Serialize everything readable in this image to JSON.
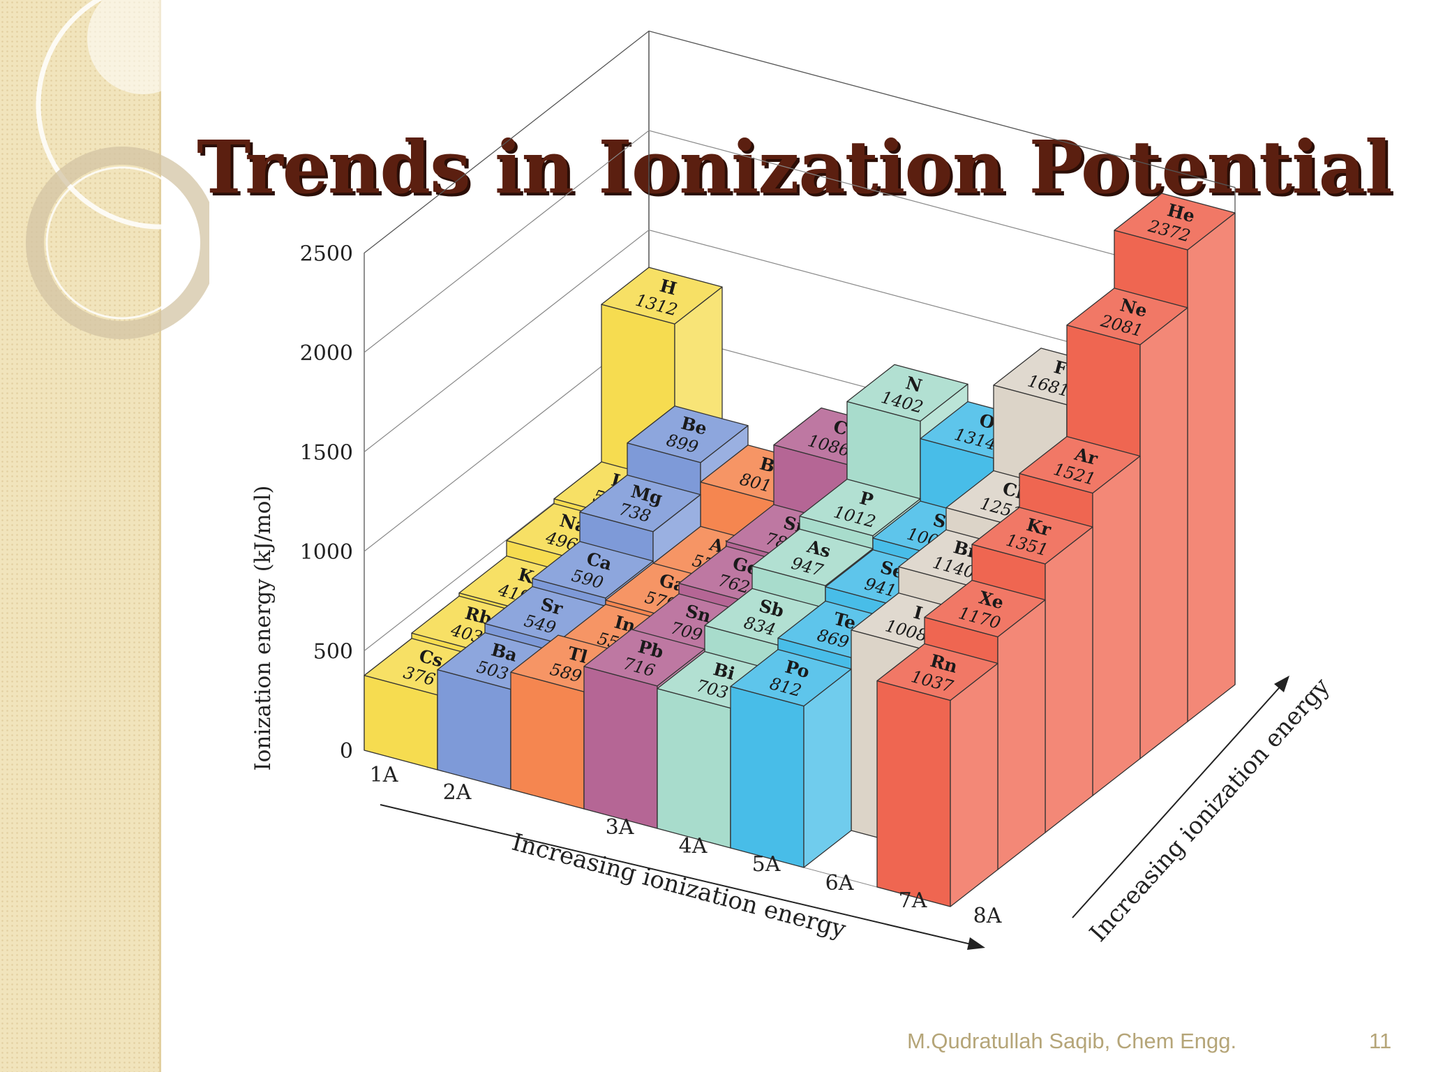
{
  "slide": {
    "title": "Trends in Ionization Potential",
    "author": "M.Qudratullah Saqib, Chem Engg.",
    "page_number": "11"
  },
  "chart_data": {
    "type": "bar",
    "style": "3d-bar-grid",
    "ylabel": "Ionization energy (kJ/mol)",
    "xlabel": "Increasing ionization energy",
    "depth_label": "Increasing ionization energy",
    "ylim": [
      0,
      2500
    ],
    "y_ticks": [
      "0",
      "500",
      "1000",
      "1500",
      "2000",
      "2500"
    ],
    "groups": [
      "1A",
      "2A",
      "3A",
      "4A",
      "5A",
      "6A",
      "7A",
      "8A"
    ],
    "group_colors": {
      "1A": "#f6dc50",
      "2A": "#7e9ad8",
      "3A": "#f58650",
      "4A": "#b56695",
      "5A": "#a8dccc",
      "6A": "#48bde8",
      "7A": "#dcd4c8",
      "8A": "#ef6651"
    },
    "elements": [
      {
        "symbol": "H",
        "value": 1312,
        "group": "1A",
        "period": 1
      },
      {
        "symbol": "He",
        "value": 2372,
        "group": "8A",
        "period": 1
      },
      {
        "symbol": "Li",
        "value": 520,
        "group": "1A",
        "period": 2
      },
      {
        "symbol": "Be",
        "value": 899,
        "group": "2A",
        "period": 2
      },
      {
        "symbol": "B",
        "value": 801,
        "group": "3A",
        "period": 2
      },
      {
        "symbol": "C",
        "value": 1086,
        "group": "4A",
        "period": 2
      },
      {
        "symbol": "N",
        "value": 1402,
        "group": "5A",
        "period": 2
      },
      {
        "symbol": "O",
        "value": 1314,
        "group": "6A",
        "period": 2
      },
      {
        "symbol": "F",
        "value": 1681,
        "group": "7A",
        "period": 2
      },
      {
        "symbol": "Ne",
        "value": 2081,
        "group": "8A",
        "period": 2
      },
      {
        "symbol": "Na",
        "value": 496,
        "group": "1A",
        "period": 3
      },
      {
        "symbol": "Mg",
        "value": 738,
        "group": "2A",
        "period": 3
      },
      {
        "symbol": "Al",
        "value": 578,
        "group": "3A",
        "period": 3
      },
      {
        "symbol": "Si",
        "value": 786,
        "group": "4A",
        "period": 3
      },
      {
        "symbol": "P",
        "value": 1012,
        "group": "5A",
        "period": 3
      },
      {
        "symbol": "S",
        "value": 1000,
        "group": "6A",
        "period": 3
      },
      {
        "symbol": "Cl",
        "value": 1251,
        "group": "7A",
        "period": 3
      },
      {
        "symbol": "Ar",
        "value": 1521,
        "group": "8A",
        "period": 3
      },
      {
        "symbol": "K",
        "value": 419,
        "group": "1A",
        "period": 4
      },
      {
        "symbol": "Ca",
        "value": 590,
        "group": "2A",
        "period": 4
      },
      {
        "symbol": "Ga",
        "value": 579,
        "group": "3A",
        "period": 4
      },
      {
        "symbol": "Ge",
        "value": 762,
        "group": "4A",
        "period": 4
      },
      {
        "symbol": "As",
        "value": 947,
        "group": "5A",
        "period": 4
      },
      {
        "symbol": "Se",
        "value": 941,
        "group": "6A",
        "period": 4
      },
      {
        "symbol": "Br",
        "value": 1140,
        "group": "7A",
        "period": 4
      },
      {
        "symbol": "Kr",
        "value": 1351,
        "group": "8A",
        "period": 4
      },
      {
        "symbol": "Rb",
        "value": 403,
        "group": "1A",
        "period": 5
      },
      {
        "symbol": "Sr",
        "value": 549,
        "group": "2A",
        "period": 5
      },
      {
        "symbol": "In",
        "value": 558,
        "group": "3A",
        "period": 5
      },
      {
        "symbol": "Sn",
        "value": 709,
        "group": "4A",
        "period": 5
      },
      {
        "symbol": "Sb",
        "value": 834,
        "group": "5A",
        "period": 5
      },
      {
        "symbol": "Te",
        "value": 869,
        "group": "6A",
        "period": 5
      },
      {
        "symbol": "I",
        "value": 1008,
        "group": "7A",
        "period": 5
      },
      {
        "symbol": "Xe",
        "value": 1170,
        "group": "8A",
        "period": 5
      },
      {
        "symbol": "Cs",
        "value": 376,
        "group": "1A",
        "period": 6
      },
      {
        "symbol": "Ba",
        "value": 503,
        "group": "2A",
        "period": 6
      },
      {
        "symbol": "Tl",
        "value": 589,
        "group": "3A",
        "period": 6
      },
      {
        "symbol": "Pb",
        "value": 716,
        "group": "4A",
        "period": 6
      },
      {
        "symbol": "Bi",
        "value": 703,
        "group": "5A",
        "period": 6
      },
      {
        "symbol": "Po",
        "value": 812,
        "group": "6A",
        "period": 6
      },
      {
        "symbol": "Rn",
        "value": 1037,
        "group": "8A",
        "period": 6
      }
    ]
  }
}
